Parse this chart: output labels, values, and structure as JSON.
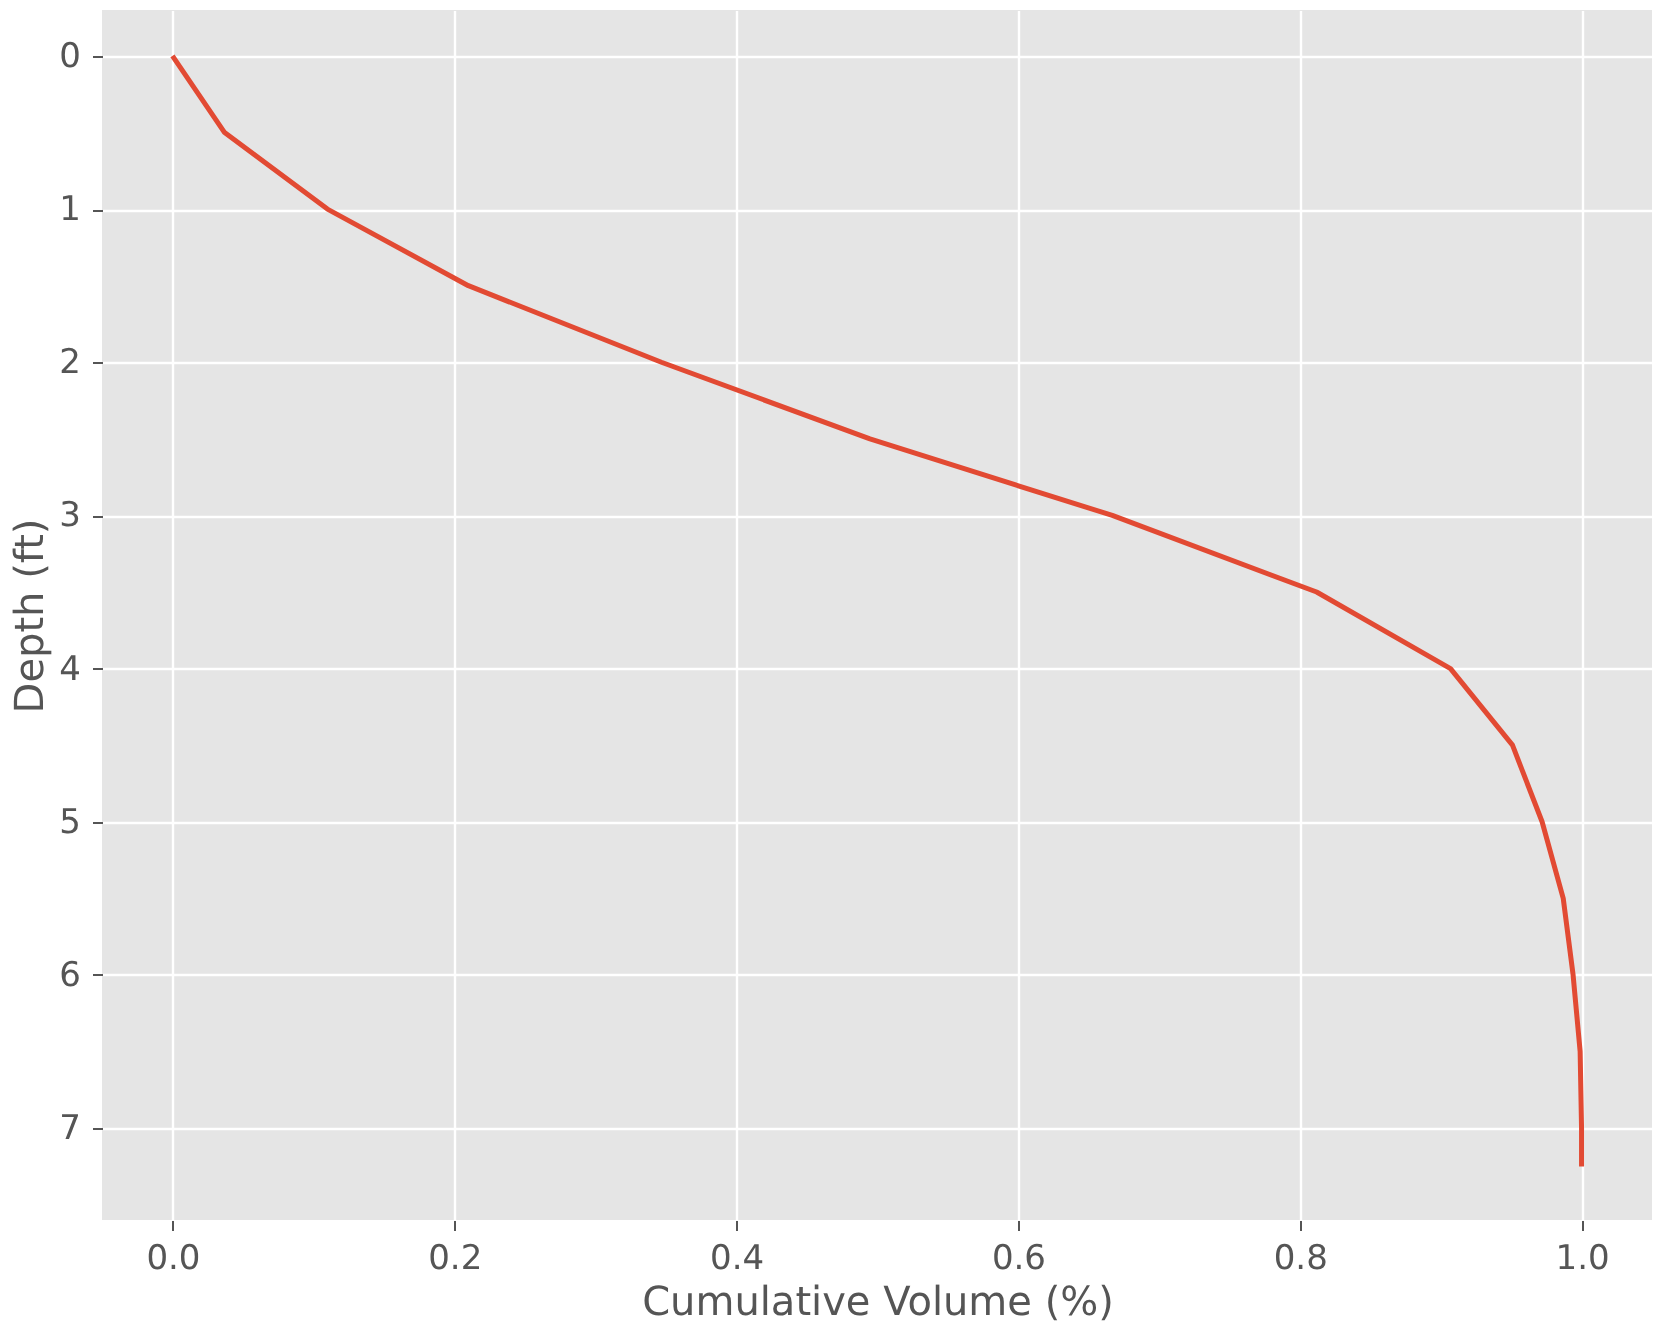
{
  "chart_data": {
    "type": "line",
    "xlabel": "Cumulative Volume (%)",
    "ylabel": "Depth (ft)",
    "series": [
      {
        "color": "#e24a33",
        "x": [
          0,
          0.037,
          0.11,
          0.21,
          0.347,
          0.495,
          0.667,
          0.812,
          0.907,
          0.951,
          0.972,
          0.987,
          0.994,
          0.999,
          1.0,
          1.0
        ],
        "values": [
          0,
          0.5,
          1,
          1.5,
          2,
          2.5,
          3,
          3.5,
          4,
          4.5,
          5,
          5.5,
          6,
          6.5,
          7,
          7.25
        ]
      }
    ],
    "xlim": [
      -0.05,
      1.05
    ],
    "xticks": [
      {
        "value": 0,
        "label": "0.0"
      },
      0.2,
      0.4,
      0.6,
      0.8,
      {
        "value": 1,
        "label": "1.0"
      }
    ],
    "ylim": [
      7.6,
      -0.3
    ],
    "yticks": [
      0,
      1,
      2,
      3,
      4,
      5,
      6,
      7
    ],
    "grid": true,
    "marker": "none",
    "line_style": "solid"
  }
}
